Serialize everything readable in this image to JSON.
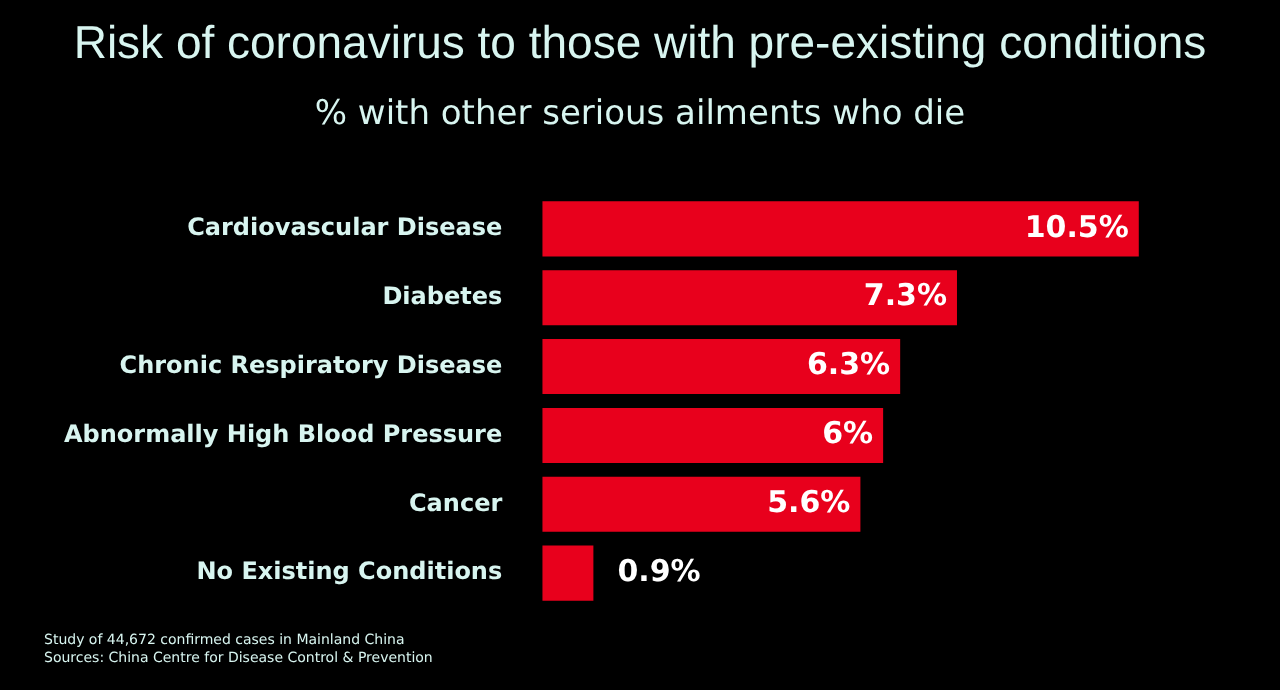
{
  "chart_data": {
    "type": "bar",
    "orientation": "horizontal",
    "title": "Risk of coronavirus to those with pre-existing conditions",
    "subtitle": "% with other serious ailments who die",
    "categories": [
      "Cardiovascular Disease",
      "Diabetes",
      "Chronic Respiratory Disease",
      "Abnormally High Blood Pressure",
      "Cancer",
      "No Existing Conditions"
    ],
    "values": [
      10.5,
      7.3,
      6.3,
      6,
      5.6,
      0.9
    ],
    "color": "#e8001c",
    "value_labels": [
      "10.5%",
      "7.3%",
      "6.3%",
      "6%",
      "5.6%",
      "0.9%"
    ],
    "legend": false,
    "annotations": [
      "Study of 44,672 confirmed cases in Mainland China",
      "Sources: China Centre for Disease Control & Prevention"
    ]
  }
}
